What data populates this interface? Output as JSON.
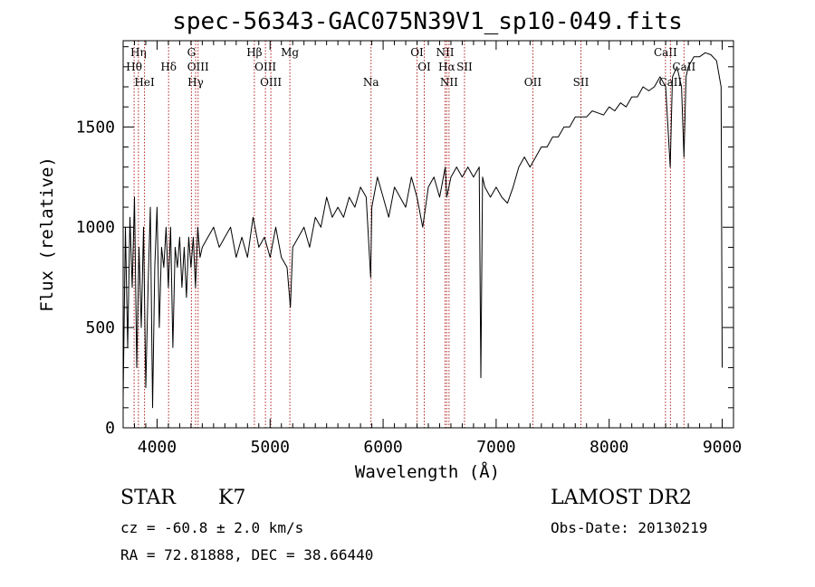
{
  "chart_data": {
    "type": "line",
    "title": "spec-56343-GAC075N39V1_sp10-049.fits",
    "xlabel": "Wavelength (Å)",
    "ylabel": "Flux (relative)",
    "xlim": [
      3700,
      9100
    ],
    "ylim": [
      0,
      1930
    ],
    "xticks": [
      4000,
      5000,
      6000,
      7000,
      8000,
      9000
    ],
    "yticks": [
      0,
      500,
      1000,
      1500
    ],
    "grid": false,
    "line_color": "#000000",
    "marker_color": "#b22222",
    "series": [
      {
        "x": [
          3700,
          3720,
          3740,
          3760,
          3780,
          3800,
          3820,
          3840,
          3860,
          3880,
          3900,
          3920,
          3940,
          3960,
          3980,
          4000,
          4020,
          4040,
          4060,
          4080,
          4100,
          4120,
          4140,
          4160,
          4180,
          4200,
          4220,
          4240,
          4260,
          4280,
          4300,
          4320,
          4340,
          4360,
          4380,
          4400,
          4450,
          4500,
          4550,
          4600,
          4650,
          4700,
          4750,
          4800,
          4850,
          4900,
          4950,
          5000,
          5050,
          5100,
          5150,
          5180,
          5200,
          5250,
          5300,
          5350,
          5400,
          5450,
          5500,
          5550,
          5600,
          5650,
          5700,
          5750,
          5800,
          5850,
          5890,
          5900,
          5950,
          6000,
          6050,
          6100,
          6150,
          6200,
          6250,
          6300,
          6350,
          6400,
          6450,
          6500,
          6550,
          6563,
          6600,
          6650,
          6700,
          6750,
          6800,
          6850,
          6865,
          6880,
          6900,
          6950,
          7000,
          7050,
          7100,
          7150,
          7200,
          7250,
          7300,
          7350,
          7400,
          7450,
          7500,
          7550,
          7600,
          7650,
          7700,
          7750,
          7800,
          7850,
          7900,
          7950,
          8000,
          8050,
          8100,
          8150,
          8200,
          8250,
          8300,
          8350,
          8400,
          8450,
          8500,
          8540,
          8560,
          8600,
          8640,
          8662,
          8680,
          8700,
          8750,
          8800,
          8850,
          8900,
          8950,
          8990,
          9000
        ],
        "y": [
          150,
          1000,
          400,
          1050,
          700,
          1150,
          300,
          900,
          500,
          1000,
          200,
          700,
          1100,
          100,
          800,
          1100,
          500,
          900,
          800,
          1000,
          700,
          1000,
          400,
          900,
          800,
          950,
          700,
          900,
          650,
          950,
          800,
          950,
          700,
          1000,
          850,
          900,
          950,
          1000,
          900,
          950,
          1000,
          850,
          950,
          850,
          1050,
          900,
          950,
          850,
          1000,
          850,
          800,
          600,
          900,
          950,
          1000,
          900,
          1050,
          1000,
          1150,
          1050,
          1100,
          1050,
          1150,
          1100,
          1200,
          1150,
          750,
          1100,
          1250,
          1150,
          1050,
          1200,
          1150,
          1100,
          1250,
          1150,
          1000,
          1200,
          1250,
          1150,
          1300,
          1150,
          1250,
          1300,
          1250,
          1300,
          1250,
          1300,
          250,
          1250,
          1200,
          1150,
          1200,
          1150,
          1120,
          1200,
          1300,
          1350,
          1300,
          1350,
          1400,
          1400,
          1450,
          1450,
          1500,
          1500,
          1550,
          1550,
          1550,
          1580,
          1570,
          1560,
          1600,
          1580,
          1620,
          1600,
          1650,
          1650,
          1700,
          1680,
          1700,
          1750,
          1700,
          1300,
          1750,
          1800,
          1700,
          1350,
          1750,
          1800,
          1850,
          1850,
          1870,
          1860,
          1830,
          1700,
          300
        ]
      }
    ],
    "spectral_lines": [
      {
        "label": "Hη",
        "x": 3835,
        "row": 1
      },
      {
        "label": "Hθ",
        "x": 3797,
        "row": 2
      },
      {
        "label": "HeI",
        "x": 3889,
        "row": 3
      },
      {
        "label": "Hδ",
        "x": 4102,
        "row": 2
      },
      {
        "label": "G",
        "x": 4304,
        "row": 1
      },
      {
        "label": "OIII",
        "x": 4363,
        "row": 2
      },
      {
        "label": "Hγ",
        "x": 4341,
        "row": 3
      },
      {
        "label": "Hβ",
        "x": 4861,
        "row": 1
      },
      {
        "label": "OIII",
        "x": 4959,
        "row": 2
      },
      {
        "label": "OIII",
        "x": 5007,
        "row": 3
      },
      {
        "label": "Mg",
        "x": 5175,
        "row": 1
      },
      {
        "label": "Na",
        "x": 5893,
        "row": 3
      },
      {
        "label": "OI",
        "x": 6300,
        "row": 1
      },
      {
        "label": "OI",
        "x": 6364,
        "row": 2
      },
      {
        "label": "NII",
        "x": 6548,
        "row": 1
      },
      {
        "label": "Hα",
        "x": 6563,
        "row": 2
      },
      {
        "label": "NII",
        "x": 6583,
        "row": 3
      },
      {
        "label": "SII",
        "x": 6720,
        "row": 2
      },
      {
        "label": "OII",
        "x": 7325,
        "row": 3
      },
      {
        "label": "SII",
        "x": 7750,
        "row": 3
      },
      {
        "label": "CaII",
        "x": 8498,
        "row": 1
      },
      {
        "label": "CaII",
        "x": 8542,
        "row": 3
      },
      {
        "label": "CaII",
        "x": 8662,
        "row": 2
      }
    ]
  },
  "info": {
    "object_class": "STAR",
    "subclass": "K7",
    "redshift": "cz = -60.8 ± 2.0 km/s",
    "coords": "RA =  72.81888, DEC =  38.66440",
    "survey": "LAMOST DR2",
    "obs_date": "Obs-Date: 20130219"
  }
}
